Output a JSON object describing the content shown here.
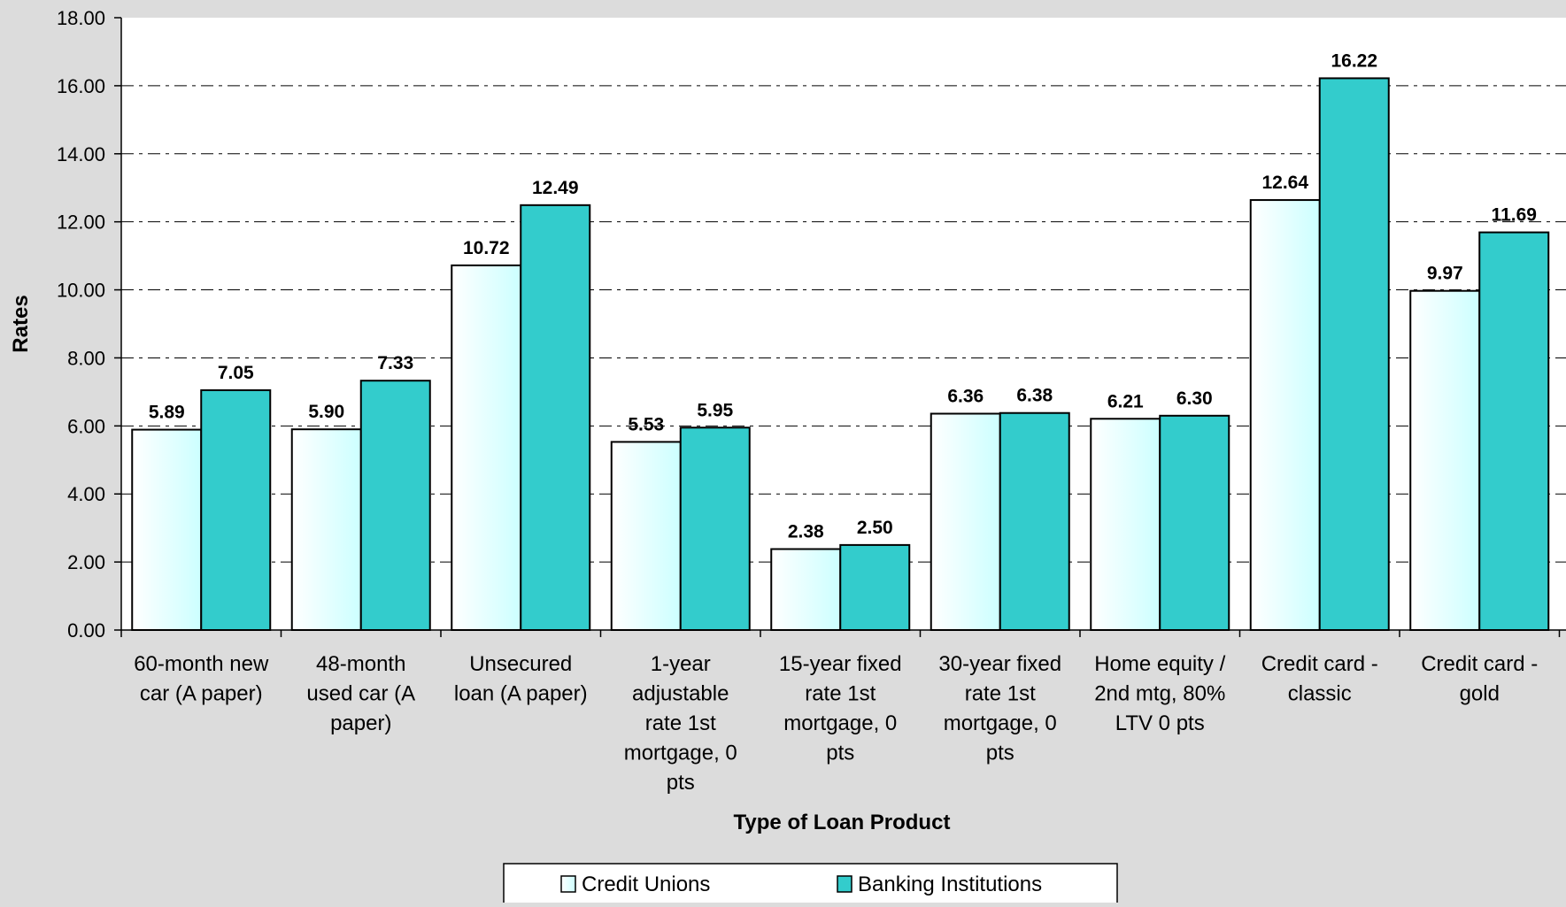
{
  "chart_data": {
    "type": "bar",
    "xlabel": "Type of Loan Product",
    "ylabel": "Rates",
    "ylim": [
      0,
      18
    ],
    "y_ticks": [
      "0.00",
      "2.00",
      "4.00",
      "6.00",
      "8.00",
      "10.00",
      "12.00",
      "14.00",
      "16.00",
      "18.00"
    ],
    "grid": "horizontal dashed",
    "legend_position": "bottom",
    "categories": [
      "60-month new car (A paper)",
      "48-month used car (A paper)",
      "Unsecured loan (A paper)",
      "1-year adjustable rate 1st mortgage, 0 pts",
      "15-year fixed rate 1st mortgage, 0 pts",
      "30-year fixed rate 1st mortgage, 0 pts",
      "Home equity / 2nd mtg, 80% LTV 0 pts",
      "Credit card - classic",
      "Credit card - gold"
    ],
    "series": [
      {
        "name": "Credit Unions",
        "values": [
          5.89,
          5.9,
          10.72,
          5.53,
          2.38,
          6.36,
          6.21,
          12.64,
          9.97
        ],
        "labels": [
          "5.89",
          "5.90",
          "10.72",
          "5.53",
          "2.38",
          "6.36",
          "6.21",
          "12.64",
          "9.97"
        ],
        "color": "#ccffff"
      },
      {
        "name": "Banking Institutions",
        "values": [
          7.05,
          7.33,
          12.49,
          5.95,
          2.5,
          6.38,
          6.3,
          16.22,
          11.69
        ],
        "labels": [
          "7.05",
          "7.33",
          "12.49",
          "5.95",
          "2.50",
          "6.38",
          "6.30",
          "16.22",
          "11.69"
        ],
        "color": "#33cccc"
      }
    ]
  }
}
